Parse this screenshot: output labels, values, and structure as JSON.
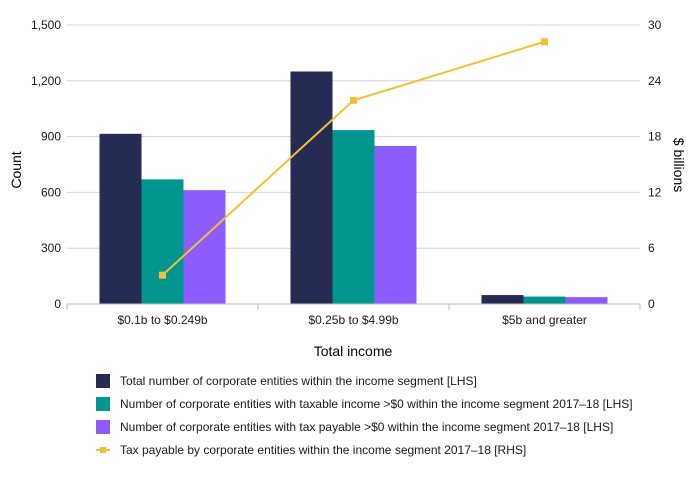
{
  "chart_data": {
    "type": "bar",
    "title": "",
    "xlabel": "Total income",
    "ylabel": "Count",
    "y2label": "$ billions",
    "categories": [
      "$0.1b to $0.249b",
      "$0.25b to $4.99b",
      "$5b and greater"
    ],
    "ylim": [
      0,
      1500
    ],
    "y2lim": [
      0,
      30
    ],
    "yticks": [
      "0",
      "300",
      "600",
      "900",
      "1,200",
      "1,500"
    ],
    "y2ticks": [
      "0",
      "6",
      "12",
      "18",
      "24",
      "30"
    ],
    "series": [
      {
        "name": "Total number of corporate entities within the income segment [LHS]",
        "type": "bar",
        "axis": "left",
        "color": "#252b53",
        "values": [
          915,
          1250,
          48
        ]
      },
      {
        "name": "Number of corporate entities with taxable income >$0 within the income segment 2017–18 [LHS]",
        "type": "bar",
        "axis": "left",
        "color": "#00968f",
        "values": [
          670,
          935,
          40
        ]
      },
      {
        "name": "Number of corporate entities with tax payable >$0 within the income segment 2017–18 [LHS]",
        "type": "bar",
        "axis": "left",
        "color": "#8c5cff",
        "values": [
          612,
          850,
          37
        ]
      },
      {
        "name": "Tax payable by corporate entities within the income segment 2017–18 [RHS]",
        "type": "line",
        "axis": "right",
        "color": "#f2c131",
        "values": [
          3.1,
          21.9,
          28.2
        ]
      }
    ],
    "legend_position": "bottom-left",
    "grid": true
  }
}
